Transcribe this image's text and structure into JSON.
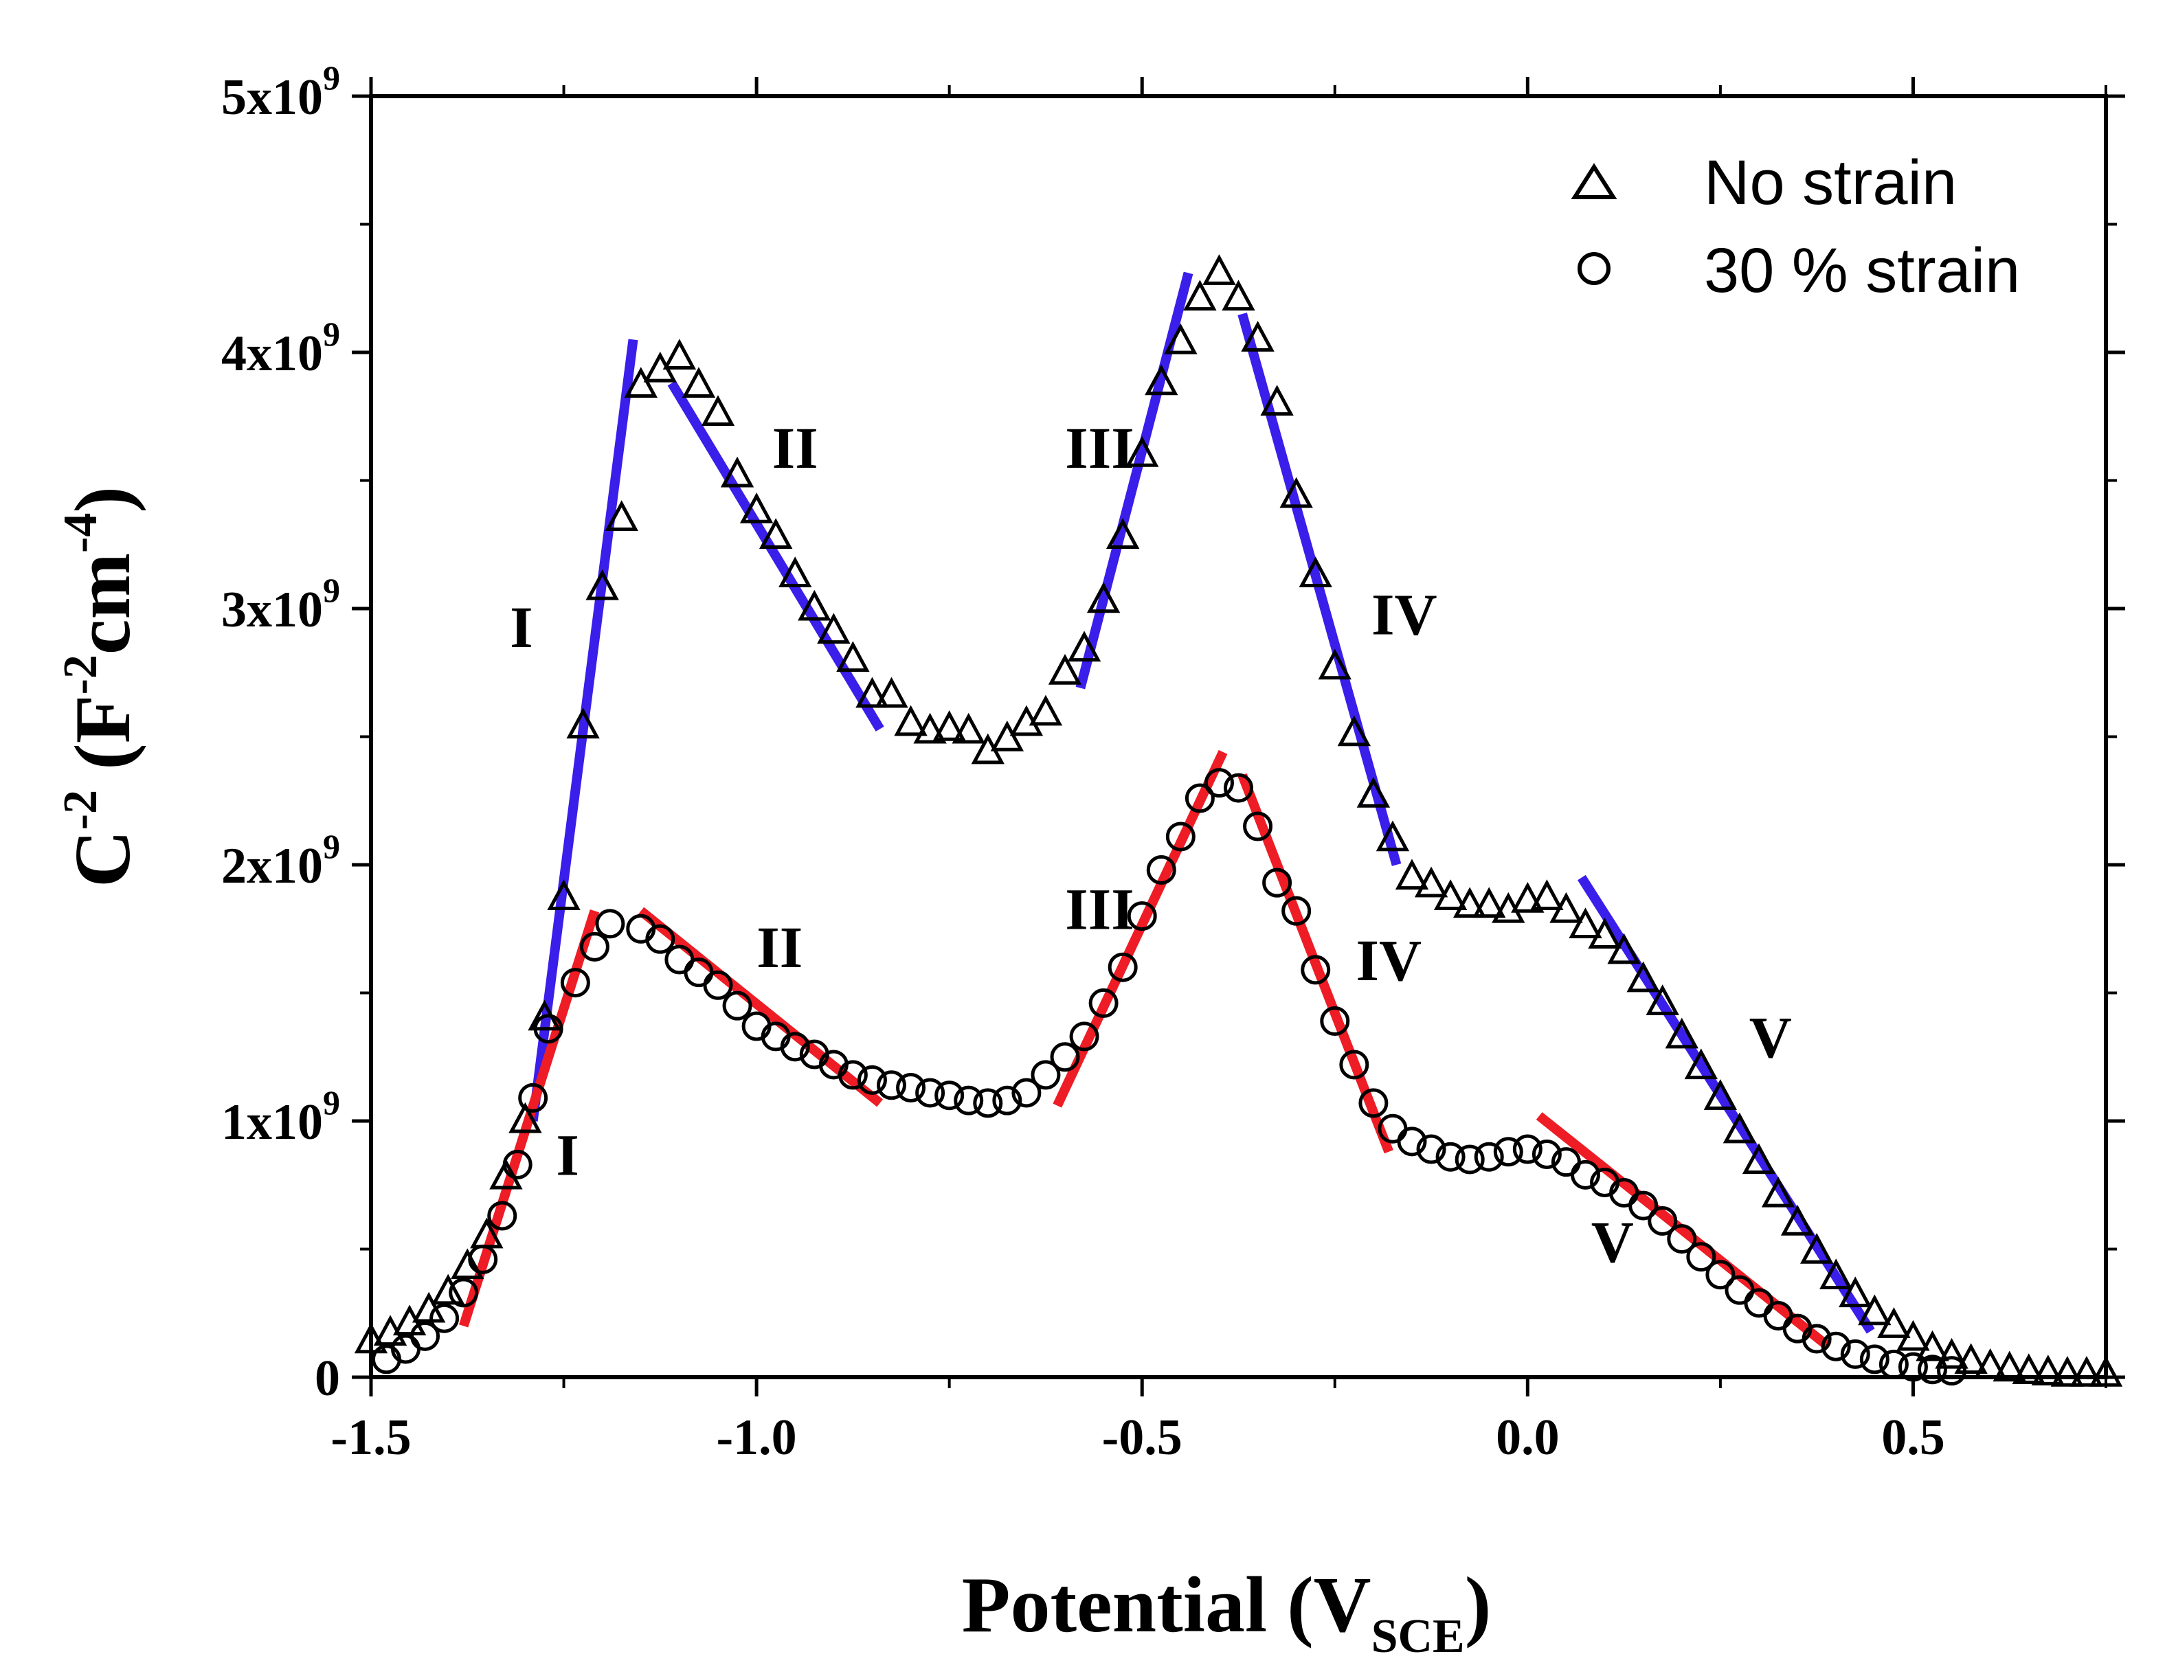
{
  "chart_data": {
    "type": "scatter",
    "title": "",
    "xlabel": {
      "main": "Potential (V",
      "sub": "SCE",
      "close": ")"
    },
    "ylabel": {
      "base": "C",
      "exp1": "-2",
      "mid": " (F",
      "exp2": "-2",
      "unit": "cm",
      "exp3": "-4",
      "close": ")"
    },
    "xlim": [
      -1.5,
      0.75
    ],
    "ylim": [
      0,
      5000000000.0
    ],
    "grid": false,
    "legend_position": "top-right",
    "x_ticks": [
      {
        "value": -1.5,
        "label": "-1.5"
      },
      {
        "value": -1.0,
        "label": "-1.0"
      },
      {
        "value": -0.5,
        "label": "-0.5"
      },
      {
        "value": 0.0,
        "label": "0.0"
      },
      {
        "value": 0.5,
        "label": "0.5"
      }
    ],
    "y_ticks": [
      {
        "value": 0,
        "label": "0",
        "exp": ""
      },
      {
        "value": 1000000000.0,
        "label": "1x10",
        "exp": "9"
      },
      {
        "value": 2000000000.0,
        "label": "2x10",
        "exp": "9"
      },
      {
        "value": 3000000000.0,
        "label": "3x10",
        "exp": "9"
      },
      {
        "value": 4000000000.0,
        "label": "4x10",
        "exp": "9"
      },
      {
        "value": 5000000000.0,
        "label": "5x10",
        "exp": "9"
      }
    ],
    "series": [
      {
        "name": "No strain",
        "marker": "triangle",
        "color": "#000000",
        "points": [
          [
            -1.5,
            140000000.0
          ],
          [
            -1.475,
            170000000.0
          ],
          [
            -1.45,
            210000000.0
          ],
          [
            -1.425,
            260000000.0
          ],
          [
            -1.4,
            330000000.0
          ],
          [
            -1.375,
            430000000.0
          ],
          [
            -1.35,
            550000000.0
          ],
          [
            -1.325,
            780000000.0
          ],
          [
            -1.3,
            1000000000.0
          ],
          [
            -1.275,
            1400000000.0
          ],
          [
            -1.25,
            1870000000.0
          ],
          [
            -1.225,
            2540000000.0
          ],
          [
            -1.2,
            3080000000.0
          ],
          [
            -1.175,
            3350000000.0
          ],
          [
            -1.15,
            3870000000.0
          ],
          [
            -1.125,
            3930000000.0
          ],
          [
            -1.1,
            3980000000.0
          ],
          [
            -1.075,
            3870000000.0
          ],
          [
            -1.05,
            3760000000.0
          ],
          [
            -1.025,
            3520000000.0
          ],
          [
            -1.0,
            3380000000.0
          ],
          [
            -0.975,
            3280000000.0
          ],
          [
            -0.95,
            3130000000.0
          ],
          [
            -0.925,
            3000000000.0
          ],
          [
            -0.9,
            2910000000.0
          ],
          [
            -0.875,
            2800000000.0
          ],
          [
            -0.85,
            2660000000.0
          ],
          [
            -0.825,
            2660000000.0
          ],
          [
            -0.8,
            2550000000.0
          ],
          [
            -0.775,
            2520000000.0
          ],
          [
            -0.75,
            2530000000.0
          ],
          [
            -0.725,
            2520000000.0
          ],
          [
            -0.7,
            2440000000.0
          ],
          [
            -0.675,
            2490000000.0
          ],
          [
            -0.65,
            2550000000.0
          ],
          [
            -0.625,
            2590000000.0
          ],
          [
            -0.6,
            2750000000.0
          ],
          [
            -0.575,
            2840000000.0
          ],
          [
            -0.55,
            3030000000.0
          ],
          [
            -0.525,
            3280000000.0
          ],
          [
            -0.5,
            3600000000.0
          ],
          [
            -0.475,
            3880000000.0
          ],
          [
            -0.45,
            4040000000.0
          ],
          [
            -0.425,
            4210000000.0
          ],
          [
            -0.4,
            4310000000.0
          ],
          [
            -0.375,
            4210000000.0
          ],
          [
            -0.35,
            4050000000.0
          ],
          [
            -0.325,
            3800000000.0
          ],
          [
            -0.3,
            3440000000.0
          ],
          [
            -0.275,
            3130000000.0
          ],
          [
            -0.25,
            2770000000.0
          ],
          [
            -0.225,
            2510000000.0
          ],
          [
            -0.2,
            2270000000.0
          ],
          [
            -0.175,
            2100000000.0
          ],
          [
            -0.15,
            1950000000.0
          ],
          [
            -0.125,
            1920000000.0
          ],
          [
            -0.1,
            1870000000.0
          ],
          [
            -0.075,
            1840000000.0
          ],
          [
            -0.05,
            1840000000.0
          ],
          [
            -0.025,
            1820000000.0
          ],
          [
            0.0,
            1860000000.0
          ],
          [
            0.025,
            1870000000.0
          ],
          [
            0.05,
            1820000000.0
          ],
          [
            0.075,
            1760000000.0
          ],
          [
            0.1,
            1720000000.0
          ],
          [
            0.125,
            1660000000.0
          ],
          [
            0.15,
            1550000000.0
          ],
          [
            0.175,
            1460000000.0
          ],
          [
            0.2,
            1330000000.0
          ],
          [
            0.225,
            1210000000.0
          ],
          [
            0.25,
            1090000000.0
          ],
          [
            0.275,
            960000000.0
          ],
          [
            0.3,
            840000000.0
          ],
          [
            0.325,
            710000000.0
          ],
          [
            0.35,
            600000000.0
          ],
          [
            0.375,
            490000000.0
          ],
          [
            0.4,
            390000000.0
          ],
          [
            0.425,
            320000000.0
          ],
          [
            0.45,
            250000000.0
          ],
          [
            0.475,
            200000000.0
          ],
          [
            0.5,
            150000000.0
          ],
          [
            0.525,
            110000000.0
          ],
          [
            0.55,
            80000000.0
          ],
          [
            0.575,
            60000000.0
          ],
          [
            0.6,
            40000000.0
          ],
          [
            0.625,
            30000000.0
          ],
          [
            0.65,
            20000000.0
          ],
          [
            0.675,
            15000000.0
          ],
          [
            0.7,
            10000000.0
          ],
          [
            0.725,
            10000000.0
          ],
          [
            0.75,
            10000000.0
          ]
        ]
      },
      {
        "name": "30 % strain",
        "marker": "circle",
        "color": "#000000",
        "points": [
          [
            -1.48,
            70000000.0
          ],
          [
            -1.455,
            110000000.0
          ],
          [
            -1.43,
            160000000.0
          ],
          [
            -1.405,
            230000000.0
          ],
          [
            -1.38,
            330000000.0
          ],
          [
            -1.355,
            460000000.0
          ],
          [
            -1.33,
            630000000.0
          ],
          [
            -1.31,
            830000000.0
          ],
          [
            -1.29,
            1090000000.0
          ],
          [
            -1.27,
            1360000000.0
          ],
          [
            -1.235,
            1540000000.0
          ],
          [
            -1.21,
            1680000000.0
          ],
          [
            -1.19,
            1770000000.0
          ],
          [
            -1.15,
            1750000000.0
          ],
          [
            -1.125,
            1710000000.0
          ],
          [
            -1.1,
            1630000000.0
          ],
          [
            -1.075,
            1580000000.0
          ],
          [
            -1.05,
            1530000000.0
          ],
          [
            -1.025,
            1450000000.0
          ],
          [
            -1.0,
            1370000000.0
          ],
          [
            -0.975,
            1330000000.0
          ],
          [
            -0.95,
            1290000000.0
          ],
          [
            -0.925,
            1260000000.0
          ],
          [
            -0.9,
            1220000000.0
          ],
          [
            -0.875,
            1180000000.0
          ],
          [
            -0.85,
            1160000000.0
          ],
          [
            -0.825,
            1140000000.0
          ],
          [
            -0.8,
            1130000000.0
          ],
          [
            -0.775,
            1110000000.0
          ],
          [
            -0.75,
            1100000000.0
          ],
          [
            -0.725,
            1080000000.0
          ],
          [
            -0.7,
            1070000000.0
          ],
          [
            -0.675,
            1080000000.0
          ],
          [
            -0.65,
            1110000000.0
          ],
          [
            -0.625,
            1180000000.0
          ],
          [
            -0.6,
            1250000000.0
          ],
          [
            -0.575,
            1330000000.0
          ],
          [
            -0.55,
            1460000000.0
          ],
          [
            -0.525,
            1600000000.0
          ],
          [
            -0.5,
            1800000000.0
          ],
          [
            -0.475,
            1980000000.0
          ],
          [
            -0.45,
            2110000000.0
          ],
          [
            -0.425,
            2260000000.0
          ],
          [
            -0.4,
            2320000000.0
          ],
          [
            -0.375,
            2300000000.0
          ],
          [
            -0.35,
            2150000000.0
          ],
          [
            -0.325,
            1930000000.0
          ],
          [
            -0.3,
            1820000000.0
          ],
          [
            -0.275,
            1590000000.0
          ],
          [
            -0.25,
            1390000000.0
          ],
          [
            -0.225,
            1220000000.0
          ],
          [
            -0.2,
            1070000000.0
          ],
          [
            -0.175,
            970000000.0
          ],
          [
            -0.15,
            920000000.0
          ],
          [
            -0.125,
            890000000.0
          ],
          [
            -0.1,
            860000000.0
          ],
          [
            -0.075,
            850000000.0
          ],
          [
            -0.05,
            860000000.0
          ],
          [
            -0.025,
            880000000.0
          ],
          [
            0.0,
            890000000.0
          ],
          [
            0.025,
            870000000.0
          ],
          [
            0.05,
            840000000.0
          ],
          [
            0.075,
            790000000.0
          ],
          [
            0.1,
            760000000.0
          ],
          [
            0.125,
            720000000.0
          ],
          [
            0.15,
            670000000.0
          ],
          [
            0.175,
            610000000.0
          ],
          [
            0.2,
            540000000.0
          ],
          [
            0.225,
            470000000.0
          ],
          [
            0.25,
            400000000.0
          ],
          [
            0.275,
            340000000.0
          ],
          [
            0.3,
            290000000.0
          ],
          [
            0.325,
            240000000.0
          ],
          [
            0.35,
            190000000.0
          ],
          [
            0.375,
            150000000.0
          ],
          [
            0.4,
            120000000.0
          ],
          [
            0.425,
            90000000.0
          ],
          [
            0.45,
            70000000.0
          ],
          [
            0.475,
            50000000.0
          ],
          [
            0.5,
            40000000.0
          ],
          [
            0.525,
            30000000.0
          ],
          [
            0.55,
            25000000.0
          ]
        ]
      }
    ],
    "fit_lines": [
      {
        "series": "No strain",
        "color": "#3a1eea",
        "from": [
          -1.29,
          1000000000.0
        ],
        "to": [
          -1.16,
          4050000000.0
        ]
      },
      {
        "series": "No strain",
        "color": "#3a1eea",
        "from": [
          -1.11,
          3880000000.0
        ],
        "to": [
          -0.84,
          2530000000.0
        ]
      },
      {
        "series": "No strain",
        "color": "#3a1eea",
        "from": [
          -0.58,
          2690000000.0
        ],
        "to": [
          -0.44,
          4310000000.0
        ]
      },
      {
        "series": "No strain",
        "color": "#3a1eea",
        "from": [
          -0.37,
          4150000000.0
        ],
        "to": [
          -0.17,
          2000000000.0
        ]
      },
      {
        "series": "No strain",
        "color": "#3a1eea",
        "from": [
          0.07,
          1950000000.0
        ],
        "to": [
          0.445,
          180000000.0
        ]
      },
      {
        "series": "30 % strain",
        "color": "#ee1c25",
        "from": [
          -1.38,
          200000000.0
        ],
        "to": [
          -1.21,
          1820000000.0
        ]
      },
      {
        "series": "30 % strain",
        "color": "#ee1c25",
        "from": [
          -1.15,
          1820000000.0
        ],
        "to": [
          -0.84,
          1070000000.0
        ]
      },
      {
        "series": "30 % strain",
        "color": "#ee1c25",
        "from": [
          -0.61,
          1060000000.0
        ],
        "to": [
          -0.395,
          2440000000.0
        ]
      },
      {
        "series": "30 % strain",
        "color": "#ee1c25",
        "from": [
          -0.37,
          2350000000.0
        ],
        "to": [
          -0.18,
          880000000.0
        ]
      },
      {
        "series": "30 % strain",
        "color": "#ee1c25",
        "from": [
          0.015,
          1020000000.0
        ],
        "to": [
          0.39,
          120000000.0
        ]
      }
    ],
    "annotations": [
      {
        "text": "I",
        "x": -1.305,
        "y": 2850000000.0,
        "series": "No strain"
      },
      {
        "text": "II",
        "x": -0.95,
        "y": 3550000000.0,
        "series": "No strain"
      },
      {
        "text": "III",
        "x": -0.555,
        "y": 3550000000.0,
        "series": "No strain"
      },
      {
        "text": "IV",
        "x": -0.16,
        "y": 2900000000.0,
        "series": "No strain"
      },
      {
        "text": "V",
        "x": 0.315,
        "y": 1250000000.0,
        "series": "No strain"
      },
      {
        "text": "I",
        "x": -1.245,
        "y": 790000000.0,
        "series": "30 % strain"
      },
      {
        "text": "II",
        "x": -0.97,
        "y": 1600000000.0,
        "series": "30 % strain"
      },
      {
        "text": "III",
        "x": -0.555,
        "y": 1750000000.0,
        "series": "30 % strain"
      },
      {
        "text": "IV",
        "x": -0.18,
        "y": 1550000000.0,
        "series": "30 % strain"
      },
      {
        "text": "V",
        "x": 0.11,
        "y": 450000000.0,
        "series": "30 % strain"
      }
    ]
  }
}
